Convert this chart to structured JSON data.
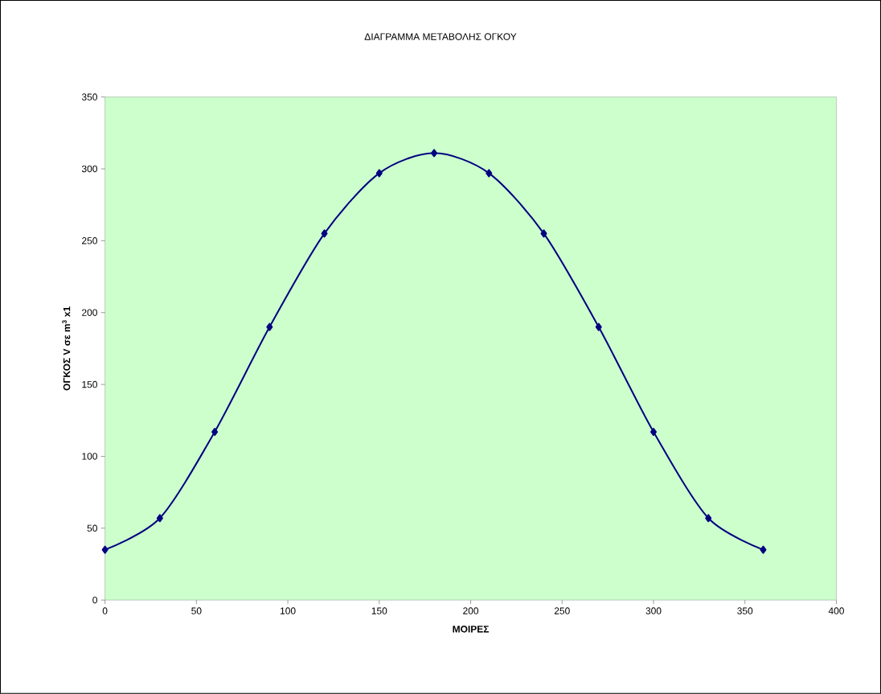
{
  "chart_data": {
    "type": "line",
    "title": "ΔΙΑΓΡΑΜΜΑ ΜΕΤΑΒΟΛΗΣ ΟΓΚΟΥ",
    "xlabel": "ΜΟΙΡΕΣ",
    "ylabel": "ΟΓΚΟΣ V σε m$^{3}$ x1",
    "x": [
      0,
      30,
      60,
      90,
      120,
      150,
      180,
      210,
      240,
      270,
      300,
      330,
      360
    ],
    "series": [
      {
        "color": "#000080",
        "values": [
          35,
          57,
          117,
          190,
          255,
          297,
          311,
          297,
          255,
          190,
          117,
          57,
          35
        ]
      }
    ],
    "xlim": [
      0,
      400
    ],
    "ylim": [
      0,
      350
    ],
    "xticks": [
      0,
      50,
      100,
      150,
      200,
      250,
      300,
      350,
      400
    ],
    "yticks": [
      0,
      50,
      100,
      150,
      200,
      250,
      300,
      350
    ],
    "marker": "diamond",
    "line_style": "solid"
  }
}
